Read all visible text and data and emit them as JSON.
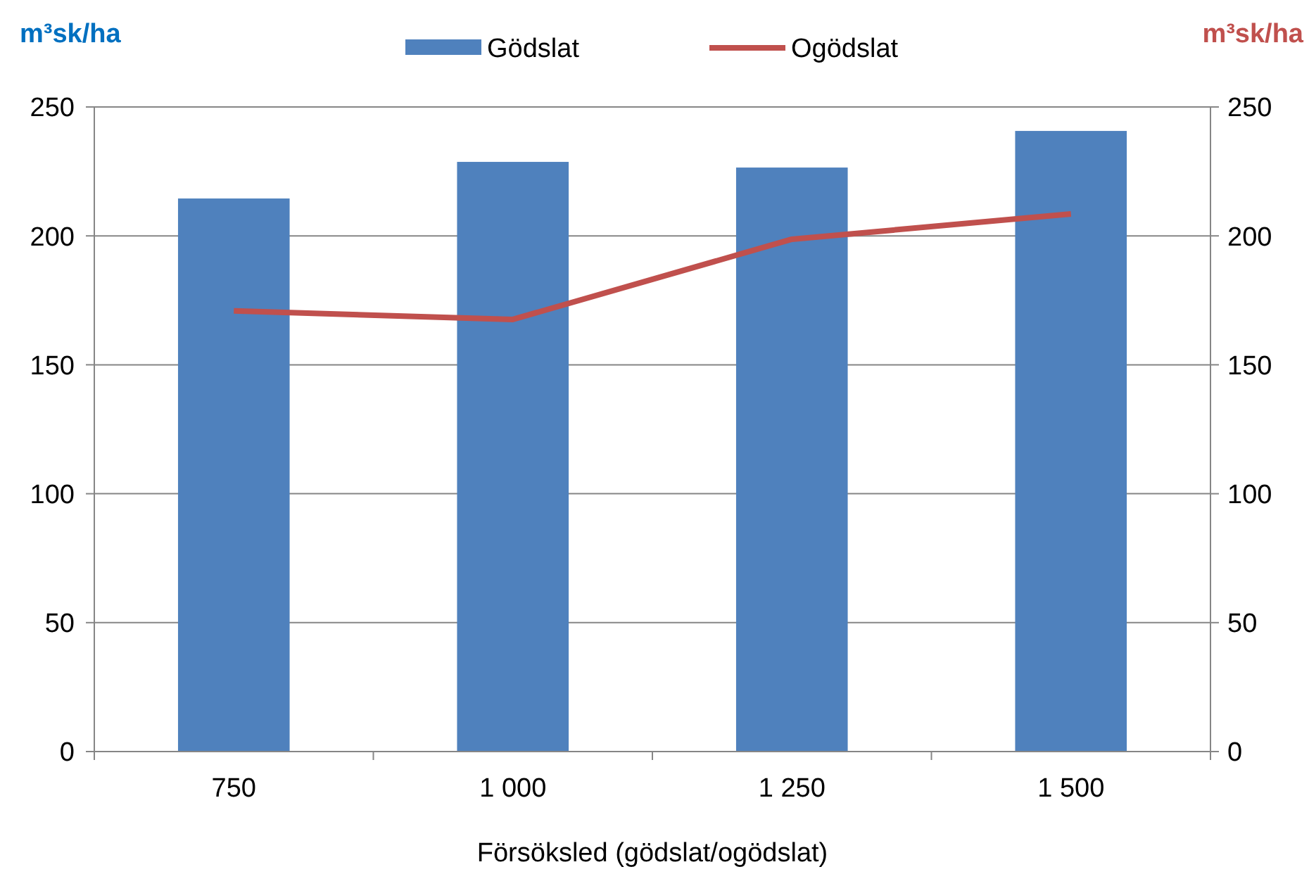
{
  "chart_data": {
    "type": "bar",
    "xlabel": "Försöksled (gödslat/ogödslat)",
    "ylabel": "m³sk/ha",
    "y2label": "m³sk/ha",
    "categories": [
      "750",
      "1 000",
      "1 250",
      "1 500"
    ],
    "series": [
      {
        "name": "Gödslat",
        "color": "#4f81bd",
        "values": [
          214.5,
          228.7,
          226.5,
          240.7
        ]
      },
      {
        "name": "Ogödslat",
        "type": "line",
        "axis": "y2",
        "color": "#c0504d",
        "values": [
          170.9,
          167.6,
          198.7,
          208.5
        ]
      }
    ],
    "ylim": [
      0,
      250
    ],
    "yticks": [
      0,
      50,
      100,
      150,
      200,
      250
    ],
    "y2lim": [
      0,
      250
    ],
    "y2ticks": [
      0,
      50,
      100,
      150,
      200,
      250
    ],
    "grid": "y",
    "legend": "top",
    "marker": "none"
  }
}
